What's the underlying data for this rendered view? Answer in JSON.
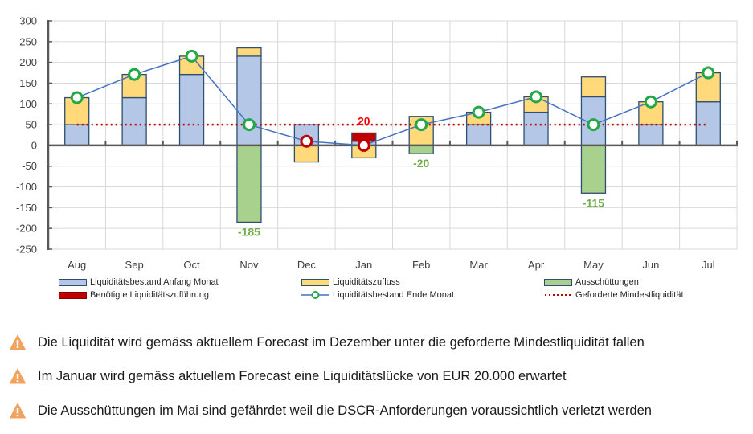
{
  "chart_data": {
    "type": "bar",
    "subtype": "stacked-bar-with-line",
    "title": "",
    "xlabel": "",
    "ylabel": "",
    "ylim": [
      -250,
      300
    ],
    "yticks": [
      300,
      250,
      200,
      150,
      100,
      50,
      0,
      -50,
      -100,
      -150,
      -200,
      -250
    ],
    "grid": true,
    "categories": [
      "Aug",
      "Sep",
      "Oct",
      "Nov",
      "Dec",
      "Jan",
      "Feb",
      "Mar",
      "Apr",
      "May",
      "Jun",
      "Jul"
    ],
    "series": [
      {
        "name": "Liquiditätsbestand Anfang Monat",
        "kind": "bar",
        "color": "#B4C7E7",
        "values": [
          50,
          115,
          171,
          215,
          50,
          10,
          0,
          50,
          80,
          117,
          50,
          105
        ]
      },
      {
        "name": "Benötigte Liquiditätszuführung",
        "kind": "bar",
        "color": "#C00000",
        "values": [
          0,
          0,
          0,
          0,
          0,
          20,
          0,
          0,
          0,
          0,
          0,
          0
        ]
      },
      {
        "name": "Liquiditätszufluss",
        "kind": "bar",
        "color": "#FFD97A",
        "values": [
          65,
          56,
          44,
          20,
          -40,
          -30,
          70,
          30,
          37,
          48,
          55,
          70
        ]
      },
      {
        "name": "Ausschüttungen",
        "kind": "bar",
        "color": "#A9D18E",
        "values": [
          0,
          0,
          0,
          -185,
          0,
          0,
          -20,
          0,
          0,
          -115,
          0,
          0
        ]
      },
      {
        "name": "Liquiditätsbestand Ende Monat",
        "kind": "line",
        "color": "#4472C4",
        "marker_ok_color": "#22A845",
        "marker_alert_color": "#C00000",
        "values": [
          115,
          171,
          215,
          50,
          10,
          0,
          50,
          80,
          117,
          50,
          105,
          175
        ]
      },
      {
        "name": "Geforderte Mindestliquidität",
        "kind": "line-dotted",
        "color": "#C00000",
        "values": [
          50,
          50,
          50,
          50,
          50,
          50,
          50,
          50,
          50,
          50,
          50,
          50
        ]
      }
    ],
    "data_labels": [
      {
        "category": "Nov",
        "text": "-185",
        "color": "#70AD47"
      },
      {
        "category": "Jan",
        "text": "20",
        "color": "#FF0000"
      },
      {
        "category": "Feb",
        "text": "-20",
        "color": "#70AD47"
      },
      {
        "category": "May",
        "text": "-115",
        "color": "#70AD47"
      }
    ],
    "legend_position": "bottom"
  },
  "legend": {
    "items": [
      {
        "label": "Liquiditätsbestand Anfang Monat",
        "type": "box",
        "color": "#B4C7E7"
      },
      {
        "label": "Liquiditätszufluss",
        "type": "box",
        "color": "#FFD97A"
      },
      {
        "label": "Ausschüttungen",
        "type": "box",
        "color": "#A9D18E"
      },
      {
        "label": "Benötigte Liquiditätszuführung",
        "type": "box",
        "color": "#C00000"
      },
      {
        "label": "Liquiditätsbestand Ende Monat",
        "type": "line-marker",
        "color": "#4472C4"
      },
      {
        "label": "Geforderte Mindestliquidität",
        "type": "dotted",
        "color": "#C00000"
      }
    ]
  },
  "warnings": [
    {
      "icon": "warning-triangle-icon",
      "text": "Die Liquidität wird gemäss aktuellem Forecast im Dezember unter die geforderte Mindestliquidität fallen"
    },
    {
      "icon": "warning-triangle-icon",
      "text": "Im Januar wird gemäss aktuellem Forecast eine Liquiditätslücke von EUR 20.000 erwartet"
    },
    {
      "icon": "warning-triangle-icon",
      "text": "Die Ausschüttungen im Mai sind gefährdet weil die DSCR-Anforderungen voraussichtlich verletzt werden"
    }
  ],
  "colors": {
    "warning": "#F0A35E",
    "axis": "#595959",
    "grid": "#D9D9D9",
    "bar_border": "#2E4F70"
  }
}
